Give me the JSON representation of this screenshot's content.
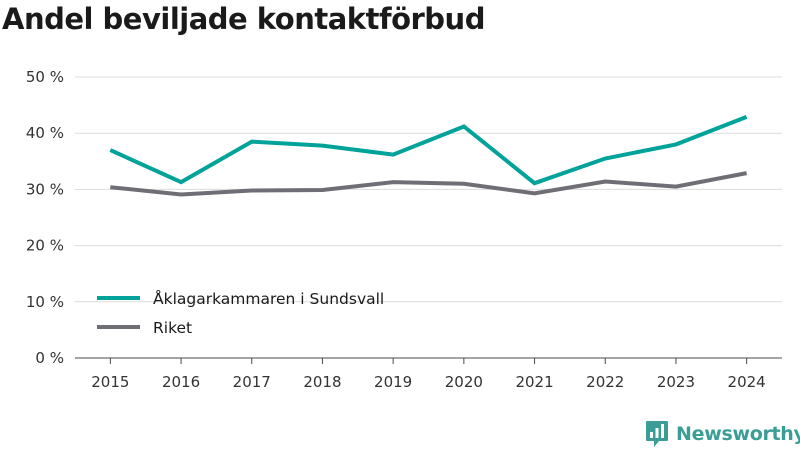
{
  "chart_data": {
    "type": "line",
    "title": "Andel beviljade kontaktförbud",
    "xlabel": "",
    "ylabel": "",
    "ylim": [
      0,
      50
    ],
    "yticks": [
      0,
      10,
      20,
      30,
      40,
      50
    ],
    "ytick_labels": [
      "0 %",
      "10 %",
      "20 %",
      "30 %",
      "40 %",
      "50 %"
    ],
    "categories": [
      "2015",
      "2016",
      "2017",
      "2018",
      "2019",
      "2020",
      "2021",
      "2022",
      "2023",
      "2024"
    ],
    "series": [
      {
        "name": "Åklagarkammaren i Sundsvall",
        "color": "#00a39a",
        "values": [
          37.0,
          31.3,
          38.5,
          37.8,
          36.2,
          41.2,
          31.1,
          35.5,
          38.0,
          42.9
        ]
      },
      {
        "name": "Riket",
        "color": "#6e6e76",
        "values": [
          30.4,
          29.1,
          29.8,
          29.9,
          31.3,
          31.0,
          29.3,
          31.4,
          30.5,
          32.9
        ]
      }
    ],
    "grid": true,
    "legend": "lower-left"
  },
  "brand": {
    "name": "Newsworthy",
    "logo_icon": "newsworthy-logo-icon",
    "color": "#3a9e97"
  }
}
